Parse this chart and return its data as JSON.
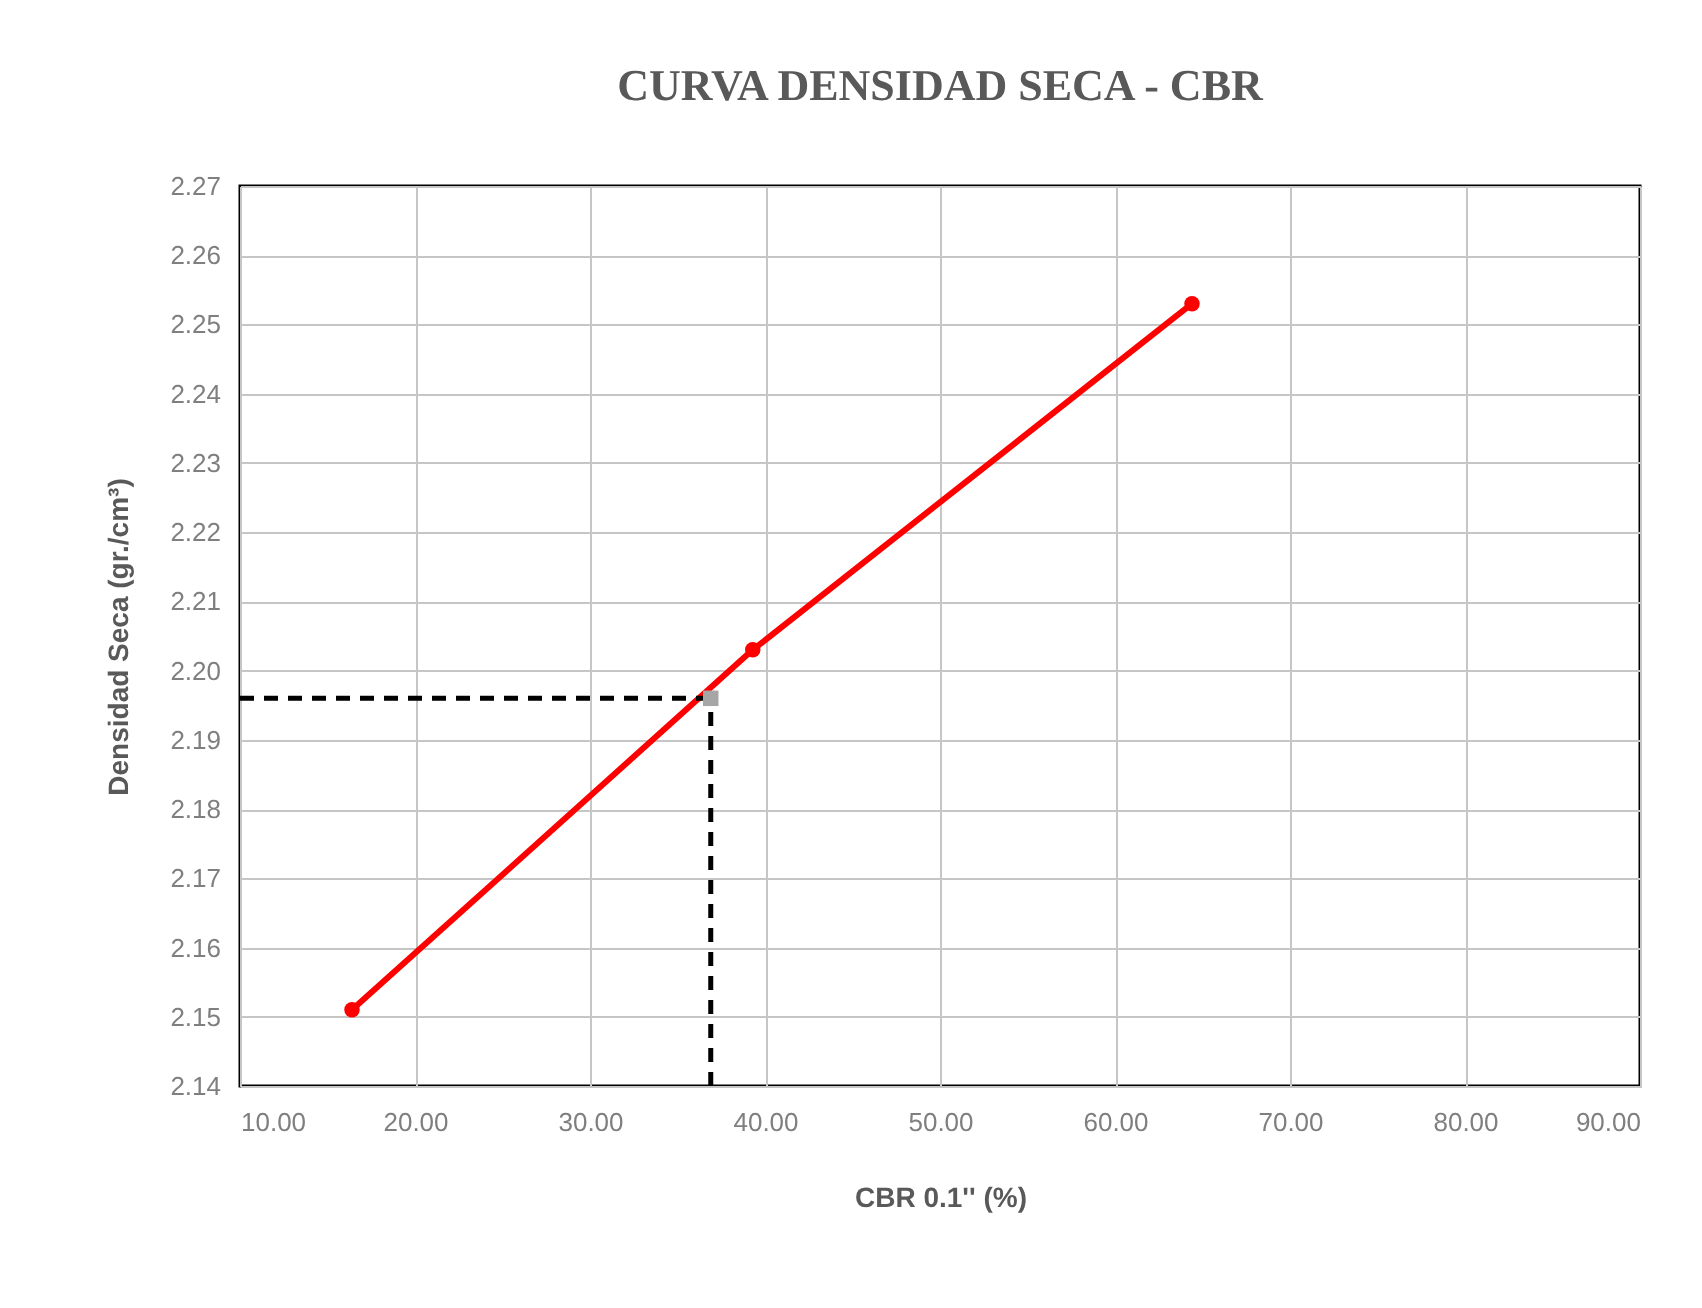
{
  "chart_data": {
    "type": "line",
    "title": "CURVA DENSIDAD SECA - CBR",
    "xlabel": "CBR 0.1'' (%)",
    "ylabel": "Densidad Seca (gr./cm³)",
    "xlim": [
      10,
      90
    ],
    "ylim": [
      2.14,
      2.27
    ],
    "xticks": [
      {
        "value": 10,
        "label": "10.00"
      },
      {
        "value": 20,
        "label": "20.00"
      },
      {
        "value": 30,
        "label": "30.00"
      },
      {
        "value": 40,
        "label": "40.00"
      },
      {
        "value": 50,
        "label": "50.00"
      },
      {
        "value": 60,
        "label": "60.00"
      },
      {
        "value": 70,
        "label": "70.00"
      },
      {
        "value": 80,
        "label": "80.00"
      },
      {
        "value": 90,
        "label": "90.00"
      }
    ],
    "yticks": [
      2.14,
      2.15,
      2.16,
      2.17,
      2.18,
      2.19,
      {
        "value": 2.2,
        "label": "2.20"
      },
      2.21,
      2.22,
      2.23,
      2.24,
      2.25,
      2.26,
      2.27
    ],
    "grid": true,
    "series": [
      {
        "color": "#ff0000",
        "marker": "circle",
        "x": [
          16.4,
          39.3,
          64.4
        ],
        "values": [
          2.151,
          2.203,
          2.253
        ]
      },
      {
        "color": "#000000",
        "marker": "none",
        "line_style": "dashed",
        "x": [
          10,
          36.9
        ],
        "values": [
          2.196,
          2.196
        ]
      },
      {
        "color": "#000000",
        "marker": "none",
        "line_style": "dashed",
        "x": [
          36.9,
          36.9
        ],
        "values": [
          2.14,
          2.196
        ]
      },
      {
        "type": "scatter",
        "color": "#a6a6a6",
        "marker": "square",
        "x": [
          36.9
        ],
        "values": [
          2.196
        ]
      }
    ]
  }
}
